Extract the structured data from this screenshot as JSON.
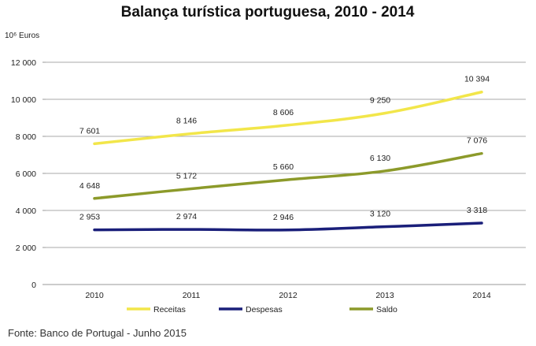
{
  "chart_data": {
    "type": "line",
    "title": "Balança turística portuguesa, 2010 - 2014",
    "unit_label": "10⁶ Euros",
    "categories": [
      "2010",
      "2011",
      "2012",
      "2013",
      "2014"
    ],
    "ylim": [
      0,
      12000
    ],
    "yticks": [
      0,
      2000,
      4000,
      6000,
      8000,
      10000,
      12000
    ],
    "ytick_labels": [
      "0",
      "2 000",
      "4 000",
      "6 000",
      "8 000",
      "10 000",
      "12 000"
    ],
    "grid": true,
    "legend_position": "bottom",
    "series": [
      {
        "name": "Receitas",
        "color": "#f2e64a",
        "values": [
          7601,
          8146,
          8606,
          9250,
          10394
        ],
        "labels": [
          "7 601",
          "8 146",
          "8 606",
          "9 250",
          "10 394"
        ]
      },
      {
        "name": "Despesas",
        "color": "#1a1f7a",
        "values": [
          2953,
          2974,
          2946,
          3120,
          3318
        ],
        "labels": [
          "2 953",
          "2 974",
          "2 946",
          "3 120",
          "3 318"
        ]
      },
      {
        "name": "Saldo",
        "color": "#8c9a2a",
        "values": [
          4648,
          5172,
          5660,
          6130,
          7076
        ],
        "labels": [
          "4 648",
          "5 172",
          "5 660",
          "6 130",
          "7 076"
        ]
      }
    ]
  },
  "source": "Fonte: Banco de Portugal - Junho 2015"
}
